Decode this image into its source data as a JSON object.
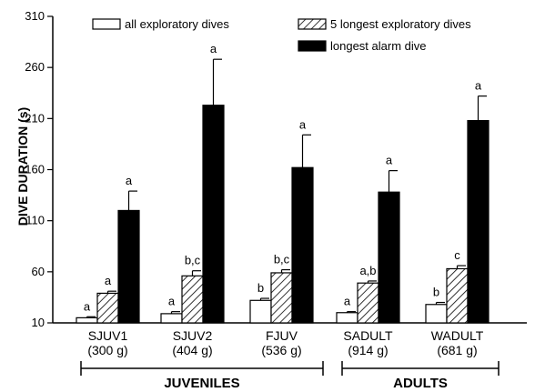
{
  "chart_data": {
    "type": "bar",
    "ylabel": "DIVE DURATION (s)",
    "ylim": [
      10,
      310
    ],
    "yticks": [
      10,
      60,
      110,
      160,
      210,
      260,
      310
    ],
    "grid": false,
    "legend_position": "top",
    "categories": [
      {
        "name": "SJUV1",
        "mass": "(300 g)"
      },
      {
        "name": "SJUV2",
        "mass": "(404 g)"
      },
      {
        "name": "FJUV",
        "mass": "(536 g)"
      },
      {
        "name": "SADULT",
        "mass": "(914 g)"
      },
      {
        "name": "WADULT",
        "mass": "(681 g)"
      }
    ],
    "groups": [
      {
        "label": "JUVENILES",
        "categories": [
          0,
          1,
          2
        ]
      },
      {
        "label": "ADULTS",
        "categories": [
          3,
          4
        ]
      }
    ],
    "series": [
      {
        "name": "all exploratory dives",
        "fill": "white",
        "values": [
          15,
          19,
          32,
          20,
          28
        ],
        "errors": [
          1,
          2,
          2,
          1,
          2
        ],
        "sig": [
          "a",
          "a",
          "b",
          "a",
          "b"
        ]
      },
      {
        "name": "5 longest exploratory dives",
        "fill": "hatch",
        "values": [
          39,
          56,
          59,
          49,
          63
        ],
        "errors": [
          2,
          5,
          3,
          2,
          3
        ],
        "sig": [
          "a",
          "b,c",
          "b,c",
          "a,b",
          "c"
        ]
      },
      {
        "name": "longest alarm dive",
        "fill": "black",
        "values": [
          120,
          223,
          162,
          138,
          208
        ],
        "errors": [
          19,
          45,
          32,
          21,
          24
        ],
        "sig": [
          "a",
          "a",
          "a",
          "a",
          "a"
        ]
      }
    ]
  },
  "colors": {
    "ink": "#000000",
    "background": "#ffffff"
  }
}
